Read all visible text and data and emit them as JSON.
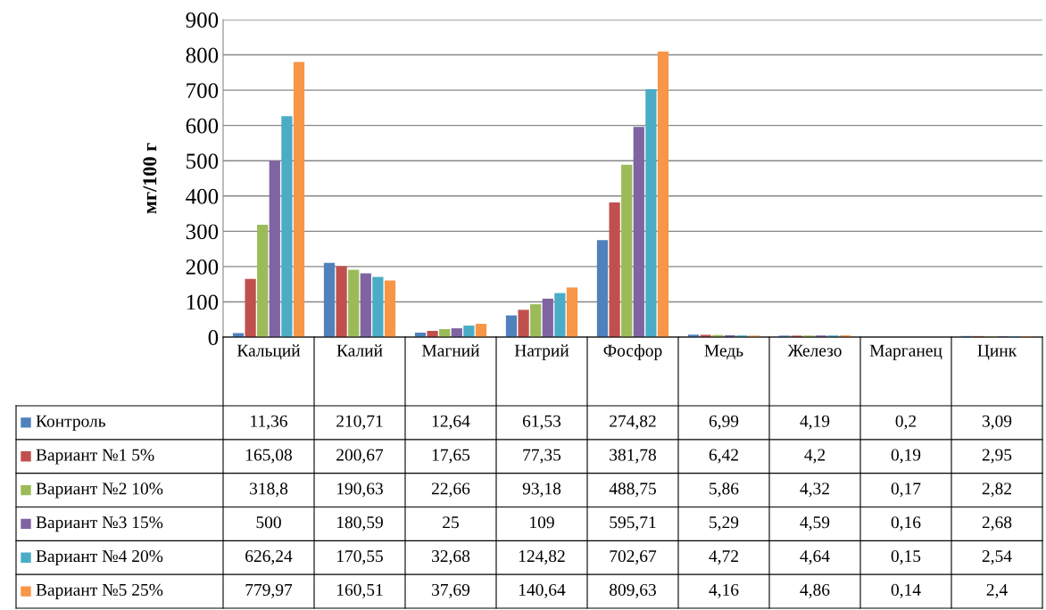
{
  "chart_data": {
    "type": "bar",
    "ylabel": "мг/100 г",
    "categories": [
      "Кальций",
      "Калий",
      "Магний",
      "Натрий",
      "Фосфор",
      "Медь",
      "Железо",
      "Марганец",
      "Цинк"
    ],
    "series": [
      {
        "name": "Контроль",
        "color": "#4f81bd",
        "values": [
          11.36,
          210.71,
          12.64,
          61.53,
          274.82,
          6.99,
          4.19,
          0.2,
          3.09
        ],
        "value_labels": [
          "11,36",
          "210,71",
          "12,64",
          "61,53",
          "274,82",
          "6,99",
          "4,19",
          "0,2",
          "3,09"
        ]
      },
      {
        "name": "Вариант №1 5%",
        "color": "#c0504d",
        "values": [
          165.08,
          200.67,
          17.65,
          77.35,
          381.78,
          6.42,
          4.2,
          0.19,
          2.95
        ],
        "value_labels": [
          "165,08",
          "200,67",
          "17,65",
          "77,35",
          "381,78",
          "6,42",
          "4,2",
          "0,19",
          "2,95"
        ]
      },
      {
        "name": "Вариант №2 10%",
        "color": "#9bbb59",
        "values": [
          318.8,
          190.63,
          22.66,
          93.18,
          488.75,
          5.86,
          4.32,
          0.17,
          2.82
        ],
        "value_labels": [
          "318,8",
          "190,63",
          "22,66",
          "93,18",
          "488,75",
          "5,86",
          "4,32",
          "0,17",
          "2,82"
        ]
      },
      {
        "name": "Вариант №3 15%",
        "color": "#8064a2",
        "values": [
          500,
          180.59,
          25,
          109,
          595.71,
          5.29,
          4.59,
          0.16,
          2.68
        ],
        "value_labels": [
          "500",
          "180,59",
          "25",
          "109",
          "595,71",
          "5,29",
          "4,59",
          "0,16",
          "2,68"
        ]
      },
      {
        "name": "Вариант №4 20%",
        "color": "#4bacc6",
        "values": [
          626.24,
          170.55,
          32.68,
          124.82,
          702.67,
          4.72,
          4.64,
          0.15,
          2.54
        ],
        "value_labels": [
          "626,24",
          "170,55",
          "32,68",
          "124,82",
          "702,67",
          "4,72",
          "4,64",
          "0,15",
          "2,54"
        ]
      },
      {
        "name": "Вариант №5 25%",
        "color": "#f79646",
        "values": [
          779.97,
          160.51,
          37.69,
          140.64,
          809.63,
          4.16,
          4.86,
          0.14,
          2.4
        ],
        "value_labels": [
          "779,97",
          "160,51",
          "37,69",
          "140,64",
          "809,63",
          "4,16",
          "4,86",
          "0,14",
          "2,4"
        ]
      }
    ],
    "ylim": [
      0,
      900
    ],
    "yticks": [
      0,
      100,
      200,
      300,
      400,
      500,
      600,
      700,
      800,
      900
    ],
    "grid": "y",
    "legend": "bottom"
  }
}
